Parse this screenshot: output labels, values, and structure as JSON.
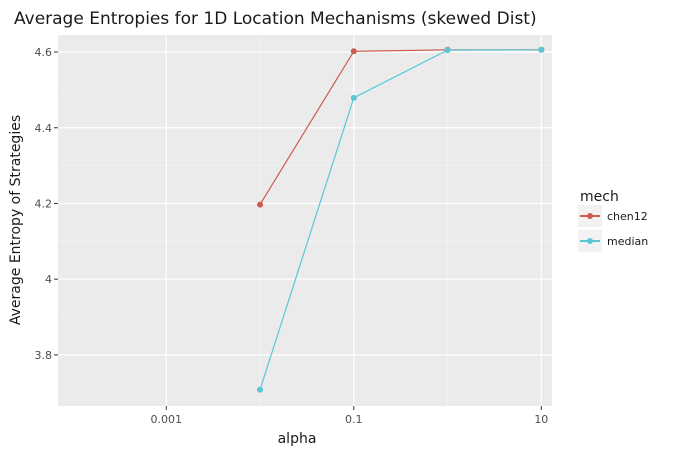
{
  "chart_data": {
    "type": "line",
    "title": "Average Entropies for 1D Location Mechanisms (skewed Dist)",
    "xlabel": "alpha",
    "ylabel": "Average Entropy of Strategies",
    "x_scale": "log10",
    "xlim": [
      7e-05,
      13
    ],
    "ylim": [
      3.665,
      4.645
    ],
    "x_ticks": [
      0.001,
      0.1,
      10
    ],
    "x_tick_labels": [
      "0.001",
      "0.1",
      "10"
    ],
    "y_ticks": [
      3.8,
      4.0,
      4.2,
      4.4,
      4.6
    ],
    "y_tick_labels": [
      "3.8",
      "4",
      "4.2",
      "4.4",
      "4.6"
    ],
    "grid": true,
    "legend": {
      "title": "mech",
      "position": "right"
    },
    "series": [
      {
        "name": "chen12",
        "color": "#cc5c4f",
        "x": [
          0.01,
          0.1,
          1,
          10
        ],
        "y": [
          4.197,
          4.602,
          4.606,
          4.606
        ]
      },
      {
        "name": "median",
        "color": "#5ac8d4",
        "x": [
          0.01,
          0.1,
          1,
          10
        ],
        "y": [
          3.708,
          4.479,
          4.605,
          4.606
        ]
      }
    ]
  }
}
